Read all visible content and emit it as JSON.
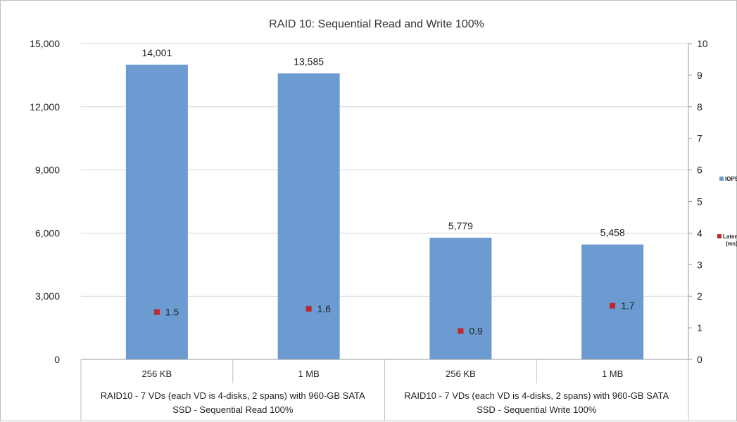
{
  "chart_data": {
    "type": "bar",
    "title": "RAID 10: Sequential Read and Write 100%",
    "categories": [
      "256 KB",
      "1 MB",
      "256 KB",
      "1 MB"
    ],
    "groups": [
      "RAID10 - 7 VDs (each VD is 4-disks, 2 spans) with 960-GB SATA SSD - Sequential Read 100%",
      "RAID10 - 7 VDs (each VD is 4-disks, 2 spans) with 960-GB SATA SSD - Sequential Write 100%"
    ],
    "group_lines": [
      [
        "RAID10 - 7 VDs (each VD is 4-disks, 2 spans) with 960-GB SATA",
        "SSD - Sequential Read 100%"
      ],
      [
        "RAID10 - 7 VDs (each VD is 4-disks, 2 spans) with 960-GB SATA",
        "SSD - Sequential Write 100%"
      ]
    ],
    "series": [
      {
        "name": "IOPS",
        "axis": "left",
        "values": [
          14001,
          13585,
          5779,
          5458
        ],
        "labels": [
          "14,001",
          "13,585",
          "5,779",
          "5,458"
        ],
        "color": "#6b9bd1"
      },
      {
        "name": "Latency (ms)",
        "axis": "right",
        "values": [
          1.5,
          1.6,
          0.9,
          1.7
        ],
        "labels": [
          "1.5",
          "1.6",
          "0.9",
          "1.7"
        ],
        "color": "#c0272d"
      }
    ],
    "ylim": [
      0,
      15000
    ],
    "yticks": [
      "0",
      "3,000",
      "6,000",
      "9,000",
      "12,000",
      "15,000"
    ],
    "y2lim": [
      0,
      10
    ],
    "y2ticks": [
      "0",
      "1",
      "2",
      "3",
      "4",
      "5",
      "6",
      "7",
      "8",
      "9",
      "10"
    ],
    "grid": true,
    "legend": "right"
  }
}
